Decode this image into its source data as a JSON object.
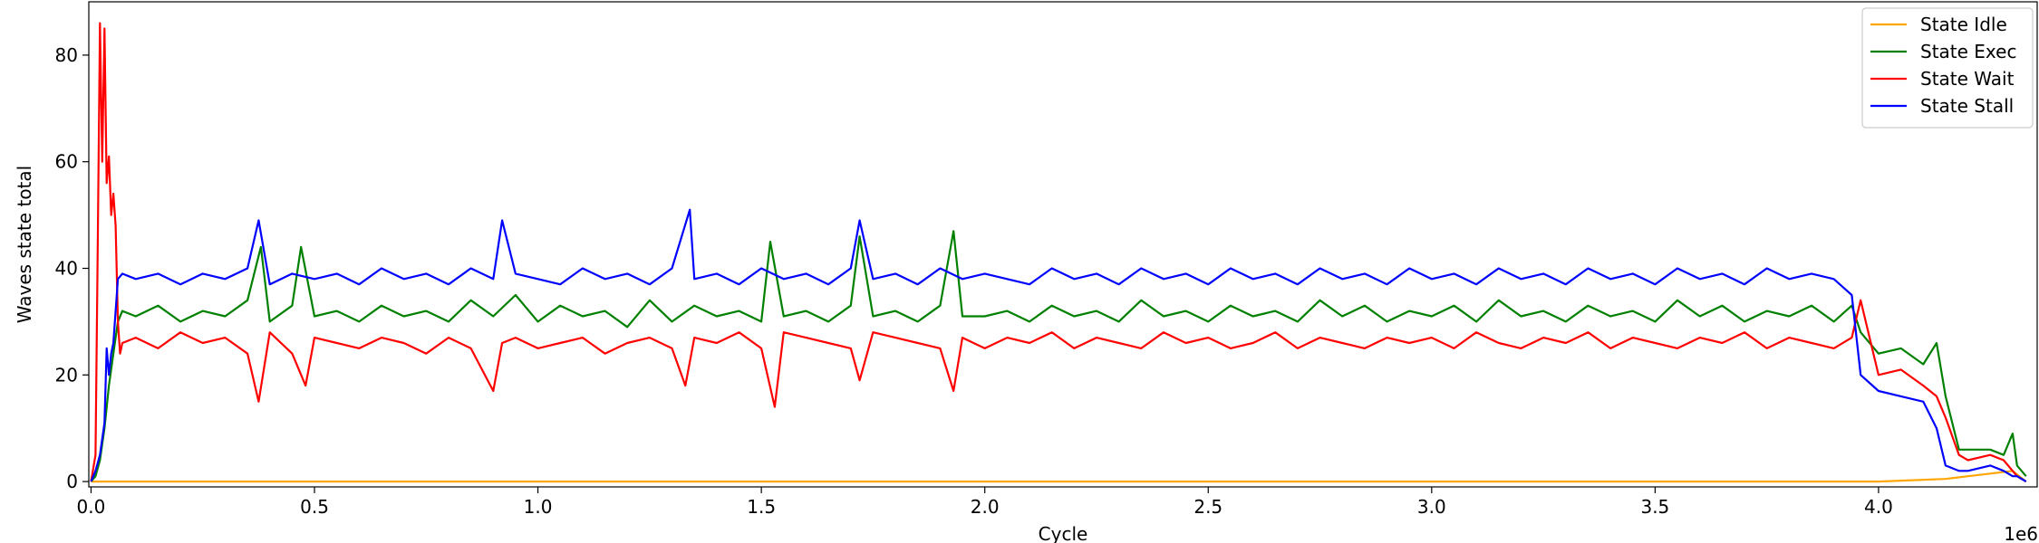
{
  "chart_data": {
    "type": "line",
    "title": "",
    "xlabel": "Cycle",
    "ylabel": "Waves state total",
    "x_offset_text": "1e6",
    "xlim": [
      -0.005,
      4.355
    ],
    "ylim": [
      -1,
      90
    ],
    "xticks": [
      0.0,
      0.5,
      1.0,
      1.5,
      2.0,
      2.5,
      3.0,
      3.5,
      4.0
    ],
    "xtick_labels": [
      "0.0",
      "0.5",
      "1.0",
      "1.5",
      "2.0",
      "2.5",
      "3.0",
      "3.5",
      "4.0"
    ],
    "yticks": [
      0,
      20,
      40,
      60,
      80
    ],
    "ytick_labels": [
      "0",
      "20",
      "40",
      "60",
      "80"
    ],
    "grid": false,
    "legend_position": "top-right",
    "series": [
      {
        "name": "State Idle",
        "color": "#ffa500",
        "x": [
          0.0,
          0.5,
          1.0,
          1.5,
          2.0,
          2.5,
          3.0,
          3.5,
          4.0,
          4.15,
          4.2,
          4.25,
          4.3,
          4.33
        ],
        "y": [
          0,
          0,
          0,
          0,
          0,
          0,
          0,
          0,
          0,
          0.5,
          1.0,
          1.5,
          2.0,
          0
        ]
      },
      {
        "name": "State Exec",
        "color": "#008000",
        "x": [
          0.0,
          0.01,
          0.02,
          0.03,
          0.04,
          0.05,
          0.06,
          0.07,
          0.1,
          0.15,
          0.2,
          0.25,
          0.3,
          0.35,
          0.38,
          0.4,
          0.45,
          0.47,
          0.5,
          0.55,
          0.6,
          0.65,
          0.7,
          0.75,
          0.8,
          0.85,
          0.9,
          0.95,
          1.0,
          1.05,
          1.1,
          1.15,
          1.2,
          1.25,
          1.3,
          1.35,
          1.4,
          1.45,
          1.5,
          1.52,
          1.55,
          1.6,
          1.65,
          1.7,
          1.72,
          1.75,
          1.8,
          1.85,
          1.9,
          1.93,
          1.95,
          2.0,
          2.05,
          2.1,
          2.15,
          2.2,
          2.25,
          2.3,
          2.35,
          2.4,
          2.45,
          2.5,
          2.55,
          2.6,
          2.65,
          2.7,
          2.75,
          2.8,
          2.85,
          2.9,
          2.95,
          3.0,
          3.05,
          3.1,
          3.15,
          3.2,
          3.25,
          3.3,
          3.35,
          3.4,
          3.45,
          3.5,
          3.55,
          3.6,
          3.65,
          3.7,
          3.75,
          3.8,
          3.85,
          3.9,
          3.94,
          3.96,
          4.0,
          4.05,
          4.1,
          4.13,
          4.15,
          4.18,
          4.2,
          4.25,
          4.28,
          4.3,
          4.31,
          4.33
        ],
        "y": [
          0,
          1,
          4,
          10,
          18,
          24,
          30,
          32,
          31,
          33,
          30,
          32,
          31,
          34,
          44,
          30,
          33,
          44,
          31,
          32,
          30,
          33,
          31,
          32,
          30,
          34,
          31,
          35,
          30,
          33,
          31,
          32,
          29,
          34,
          30,
          33,
          31,
          32,
          30,
          45,
          31,
          32,
          30,
          33,
          46,
          31,
          32,
          30,
          33,
          47,
          31,
          31,
          32,
          30,
          33,
          31,
          32,
          30,
          34,
          31,
          32,
          30,
          33,
          31,
          32,
          30,
          34,
          31,
          33,
          30,
          32,
          31,
          33,
          30,
          34,
          31,
          32,
          30,
          33,
          31,
          32,
          30,
          34,
          31,
          33,
          30,
          32,
          31,
          33,
          30,
          33,
          28,
          24,
          25,
          22,
          26,
          16,
          6,
          6,
          6,
          5,
          9,
          3,
          1
        ]
      },
      {
        "name": "State Wait",
        "color": "#ff0000",
        "x": [
          0.0,
          0.01,
          0.015,
          0.02,
          0.025,
          0.03,
          0.035,
          0.04,
          0.045,
          0.05,
          0.055,
          0.06,
          0.065,
          0.07,
          0.1,
          0.15,
          0.2,
          0.25,
          0.3,
          0.35,
          0.375,
          0.4,
          0.45,
          0.48,
          0.5,
          0.55,
          0.6,
          0.65,
          0.7,
          0.75,
          0.8,
          0.85,
          0.9,
          0.92,
          0.95,
          1.0,
          1.05,
          1.1,
          1.15,
          1.2,
          1.25,
          1.3,
          1.33,
          1.35,
          1.4,
          1.45,
          1.5,
          1.53,
          1.55,
          1.6,
          1.65,
          1.7,
          1.72,
          1.75,
          1.8,
          1.85,
          1.9,
          1.93,
          1.95,
          2.0,
          2.05,
          2.1,
          2.15,
          2.2,
          2.25,
          2.3,
          2.35,
          2.4,
          2.45,
          2.5,
          2.55,
          2.6,
          2.65,
          2.7,
          2.75,
          2.8,
          2.85,
          2.9,
          2.95,
          3.0,
          3.05,
          3.1,
          3.15,
          3.2,
          3.25,
          3.3,
          3.35,
          3.4,
          3.45,
          3.5,
          3.55,
          3.6,
          3.65,
          3.7,
          3.75,
          3.8,
          3.85,
          3.9,
          3.94,
          3.96,
          4.0,
          4.05,
          4.1,
          4.13,
          4.15,
          4.18,
          4.2,
          4.25,
          4.28,
          4.3,
          4.31,
          4.33
        ],
        "y": [
          0,
          5,
          45,
          86,
          60,
          85,
          56,
          61,
          50,
          54,
          48,
          30,
          24,
          26,
          27,
          25,
          28,
          26,
          27,
          24,
          15,
          28,
          24,
          18,
          27,
          26,
          25,
          27,
          26,
          24,
          27,
          25,
          17,
          26,
          27,
          25,
          26,
          27,
          24,
          26,
          27,
          25,
          18,
          27,
          26,
          28,
          25,
          14,
          28,
          27,
          26,
          25,
          19,
          28,
          27,
          26,
          25,
          17,
          27,
          25,
          27,
          26,
          28,
          25,
          27,
          26,
          25,
          28,
          26,
          27,
          25,
          26,
          28,
          25,
          27,
          26,
          25,
          27,
          26,
          27,
          25,
          28,
          26,
          25,
          27,
          26,
          28,
          25,
          27,
          26,
          25,
          27,
          26,
          28,
          25,
          27,
          26,
          25,
          27,
          34,
          20,
          21,
          18,
          16,
          12,
          5,
          4,
          5,
          4,
          2,
          1,
          0
        ]
      },
      {
        "name": "State Stall",
        "color": "#0000ff",
        "x": [
          0.0,
          0.01,
          0.02,
          0.03,
          0.035,
          0.04,
          0.045,
          0.05,
          0.06,
          0.07,
          0.1,
          0.15,
          0.2,
          0.25,
          0.3,
          0.35,
          0.375,
          0.4,
          0.45,
          0.5,
          0.55,
          0.6,
          0.65,
          0.7,
          0.75,
          0.8,
          0.85,
          0.9,
          0.92,
          0.95,
          1.0,
          1.05,
          1.1,
          1.15,
          1.2,
          1.25,
          1.3,
          1.34,
          1.35,
          1.4,
          1.45,
          1.5,
          1.55,
          1.6,
          1.65,
          1.7,
          1.72,
          1.75,
          1.8,
          1.85,
          1.9,
          1.95,
          2.0,
          2.05,
          2.1,
          2.15,
          2.2,
          2.25,
          2.3,
          2.35,
          2.4,
          2.45,
          2.5,
          2.55,
          2.6,
          2.65,
          2.7,
          2.75,
          2.8,
          2.85,
          2.9,
          2.95,
          3.0,
          3.05,
          3.1,
          3.15,
          3.2,
          3.25,
          3.3,
          3.35,
          3.4,
          3.45,
          3.5,
          3.55,
          3.6,
          3.65,
          3.7,
          3.75,
          3.8,
          3.85,
          3.9,
          3.94,
          3.96,
          4.0,
          4.05,
          4.1,
          4.13,
          4.15,
          4.18,
          4.2,
          4.25,
          4.28,
          4.3,
          4.31,
          4.33
        ],
        "y": [
          0,
          2,
          5,
          11,
          25,
          20,
          24,
          26,
          38,
          39,
          38,
          39,
          37,
          39,
          38,
          40,
          49,
          37,
          39,
          38,
          39,
          37,
          40,
          38,
          39,
          37,
          40,
          38,
          49,
          39,
          38,
          37,
          40,
          38,
          39,
          37,
          40,
          51,
          38,
          39,
          37,
          40,
          38,
          39,
          37,
          40,
          49,
          38,
          39,
          37,
          40,
          38,
          39,
          38,
          37,
          40,
          38,
          39,
          37,
          40,
          38,
          39,
          37,
          40,
          38,
          39,
          37,
          40,
          38,
          39,
          37,
          40,
          38,
          39,
          37,
          40,
          38,
          39,
          37,
          40,
          38,
          39,
          37,
          40,
          38,
          39,
          37,
          40,
          38,
          39,
          38,
          35,
          20,
          17,
          16,
          15,
          10,
          3,
          2,
          2,
          3,
          2,
          1,
          1,
          0
        ]
      }
    ]
  }
}
